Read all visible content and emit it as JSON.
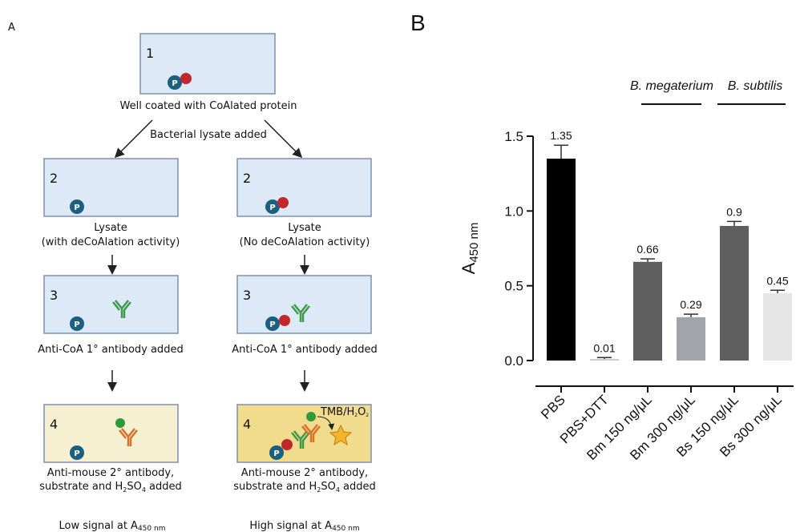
{
  "panel_a": {
    "label": "A",
    "p_icon": "P",
    "step1": {
      "number": "1",
      "caption": "Well coated with CoAlated protein"
    },
    "split_label": "Bacterial lysate added",
    "left": {
      "step2": "2",
      "lysate": [
        "Lysate",
        "(with deCoAlation activity)"
      ],
      "step3": "3",
      "step3_caption": "Anti-CoA 1° antibody added",
      "step4": "4",
      "step4_line1": "Anti-mouse 2° antibody,",
      "step4_line2": [
        "substrate and H",
        "2",
        "SO",
        "4",
        " added"
      ],
      "result": [
        "Low signal at A",
        "450 nm"
      ]
    },
    "right": {
      "step2": "2",
      "lysate": [
        "Lysate",
        "(No deCoAlation activity)"
      ],
      "step3": "3",
      "step3_caption": "Anti-CoA 1° antibody added",
      "step4": "4",
      "step4_line1": "Anti-mouse 2° antibody,",
      "step4_line2": [
        "substrate and H",
        "2",
        "SO",
        "4",
        " added"
      ],
      "tmb": [
        "TMB/H",
        "2",
        "O",
        "2"
      ],
      "result": [
        "High signal at A",
        "450 nm"
      ]
    }
  },
  "panel_b": {
    "label": "B",
    "groups": [
      "B. megaterium",
      "B. subtilis"
    ]
  },
  "chart_data": {
    "type": "bar",
    "y_label": [
      "A",
      "450 nm"
    ],
    "categories": [
      "PBS",
      "PBS+DTT",
      "Bm 150 ng/μL",
      "Bm 300 ng/μL",
      "Bs 150 ng/μL",
      "Bs 300 ng/μL"
    ],
    "values": [
      1.35,
      0.01,
      0.66,
      0.29,
      0.9,
      0.45
    ],
    "errors": [
      0.09,
      0.01,
      0.02,
      0.02,
      0.03,
      0.02
    ],
    "colors": [
      "#000000",
      "#c8c8c8",
      "#5e5e5e",
      "#a3a3ab",
      "#5e5e5e",
      "#e6e6e6"
    ],
    "ylim": [
      0,
      1.5
    ],
    "yticks": [
      {
        "value": 0,
        "label": "0.0"
      },
      0.5,
      {
        "value": 1,
        "label": "1.0"
      },
      1.5
    ]
  }
}
